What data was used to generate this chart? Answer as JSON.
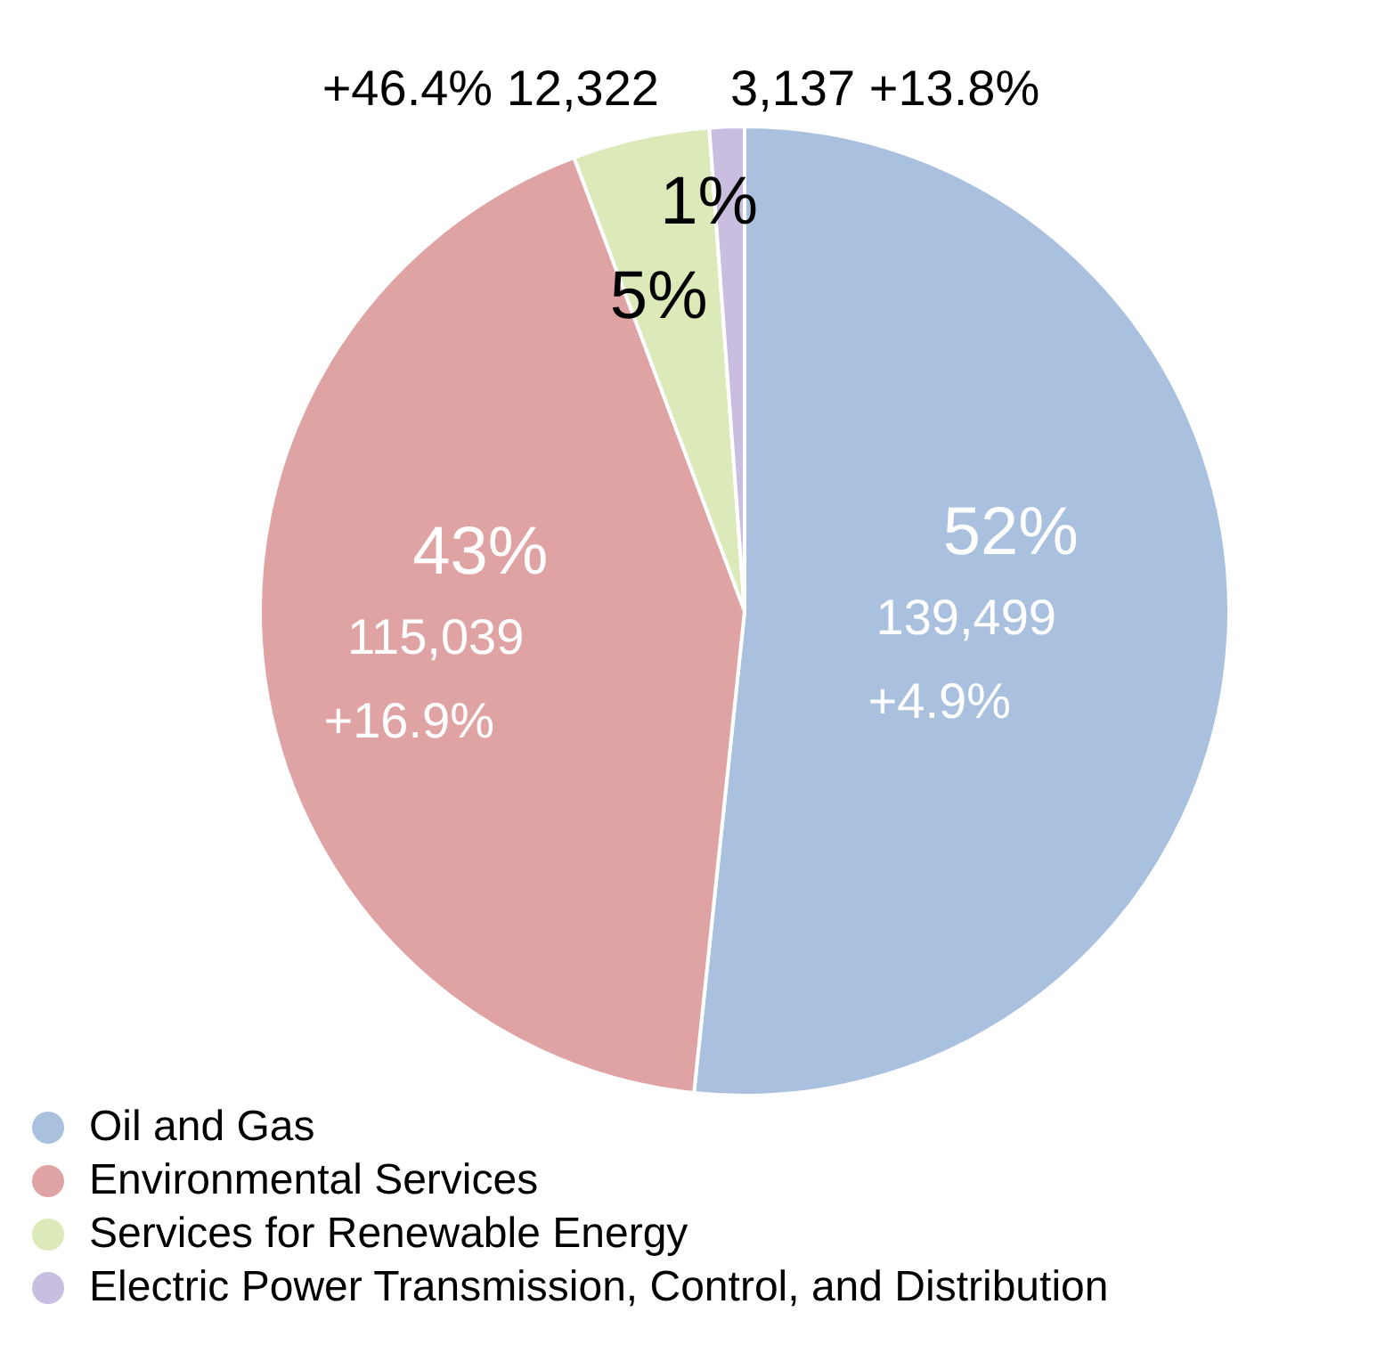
{
  "chart_data": {
    "type": "pie",
    "categories": [
      "Oil and Gas",
      "Environmental Services",
      "Services for Renewable Energy",
      "Electric Power Transmission, Control, and Distribution"
    ],
    "values": [
      139499,
      115039,
      12322,
      3137
    ],
    "colors": [
      "#a9c0de",
      "#e0a3a3",
      "#dbeab8",
      "#c9bde0"
    ],
    "value_labels": [
      "139,499",
      "115,039",
      "12,322",
      "3,137"
    ],
    "annotations": [
      {
        "text": "52%",
        "x": "Oil and Gas"
      },
      {
        "text": "+4.9%",
        "x": "Oil and Gas"
      },
      {
        "text": "43%",
        "x": "Environmental Services"
      },
      {
        "text": "+16.9%",
        "x": "Environmental Services"
      },
      {
        "text": "5%",
        "x": "Services for Renewable Energy"
      },
      {
        "text": "+46.4%",
        "x": "Services for Renewable Energy"
      },
      {
        "text": "1%",
        "x": "Electric Power Transmission, Control, and Distribution"
      },
      {
        "text": "+13.8%",
        "x": "Electric Power Transmission, Control, and Distribution"
      }
    ],
    "legend": "bottom left"
  }
}
